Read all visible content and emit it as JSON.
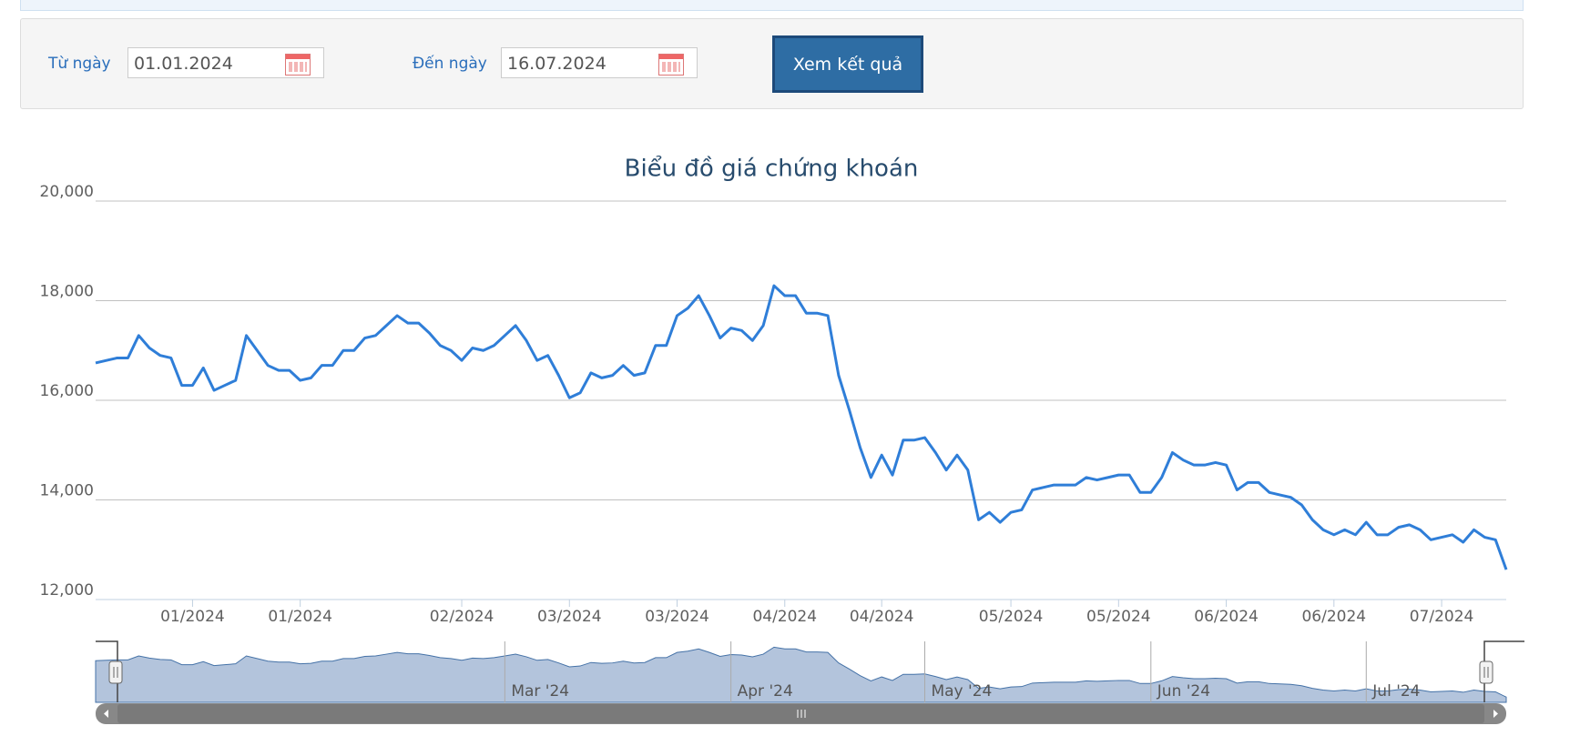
{
  "form": {
    "from_label": "Từ ngày",
    "from_value": "01.01.2024",
    "to_label": "Đến ngày",
    "to_value": "16.07.2024",
    "button": "Xem kết quả"
  },
  "chart_data": {
    "type": "line",
    "title": "Biểu đồ giá chứng khoán",
    "color": "#2f7ed8",
    "grid": true,
    "values": [
      16750,
      16800,
      16850,
      16850,
      17300,
      17050,
      16900,
      16850,
      16300,
      16300,
      16650,
      16200,
      16300,
      16400,
      17300,
      17000,
      16700,
      16600,
      16600,
      16400,
      16450,
      16700,
      16700,
      17000,
      17000,
      17250,
      17300,
      17500,
      17700,
      17550,
      17550,
      17350,
      17100,
      17000,
      16800,
      17050,
      17000,
      17100,
      17300,
      17500,
      17200,
      16800,
      16900,
      16500,
      16050,
      16150,
      16550,
      16450,
      16500,
      16700,
      16500,
      16550,
      17100,
      17100,
      17700,
      17850,
      18100,
      17700,
      17250,
      17450,
      17400,
      17200,
      17500,
      18300,
      18100,
      18100,
      17750,
      17750,
      17700,
      16500,
      15800,
      15050,
      14450,
      14900,
      14500,
      15200,
      15200,
      15250,
      14950,
      14600,
      14900,
      14600,
      13600,
      13750,
      13550,
      13750,
      13800,
      14200,
      14250,
      14300,
      14300,
      14300,
      14450,
      14400,
      14450,
      14500,
      14500,
      14150,
      14150,
      14450,
      14950,
      14800,
      14700,
      14700,
      14750,
      14700,
      14200,
      14350,
      14350,
      14150,
      14100,
      14050,
      13900,
      13600,
      13400,
      13300,
      13400,
      13300,
      13550,
      13300,
      13300,
      13450,
      13500,
      13400,
      13200,
      13250,
      13300,
      13150,
      13400,
      13250,
      13200,
      12600
    ],
    "xlim": [
      0,
      131
    ],
    "xticks": [
      {
        "value": 9,
        "label": "01/2024"
      },
      {
        "value": 19,
        "label": "01/2024"
      },
      {
        "value": 34,
        "label": "02/2024"
      },
      {
        "value": 44,
        "label": "03/2024"
      },
      {
        "value": 54,
        "label": "03/2024"
      },
      {
        "value": 64,
        "label": "04/2024"
      },
      {
        "value": 73,
        "label": "04/2024"
      },
      {
        "value": 85,
        "label": "05/2024"
      },
      {
        "value": 95,
        "label": "05/2024"
      },
      {
        "value": 105,
        "label": "06/2024"
      },
      {
        "value": 115,
        "label": "06/2024"
      },
      {
        "value": 125,
        "label": "07/2024"
      }
    ],
    "ylim": [
      12000,
      20000
    ],
    "yticks": [
      {
        "value": 12000,
        "label": "12,000"
      },
      {
        "value": 14000,
        "label": "14,000"
      },
      {
        "value": 16000,
        "label": "16,000"
      },
      {
        "value": 18000,
        "label": "18,000"
      },
      {
        "value": 20000,
        "label": "20,000"
      }
    ],
    "navigator_ticks": [
      {
        "value": 38,
        "label": "Mar '24"
      },
      {
        "value": 59,
        "label": "Apr '24"
      },
      {
        "value": 77,
        "label": "May '24"
      },
      {
        "value": 98,
        "label": "Jun '24"
      },
      {
        "value": 118,
        "label": "Jul '24"
      }
    ]
  }
}
